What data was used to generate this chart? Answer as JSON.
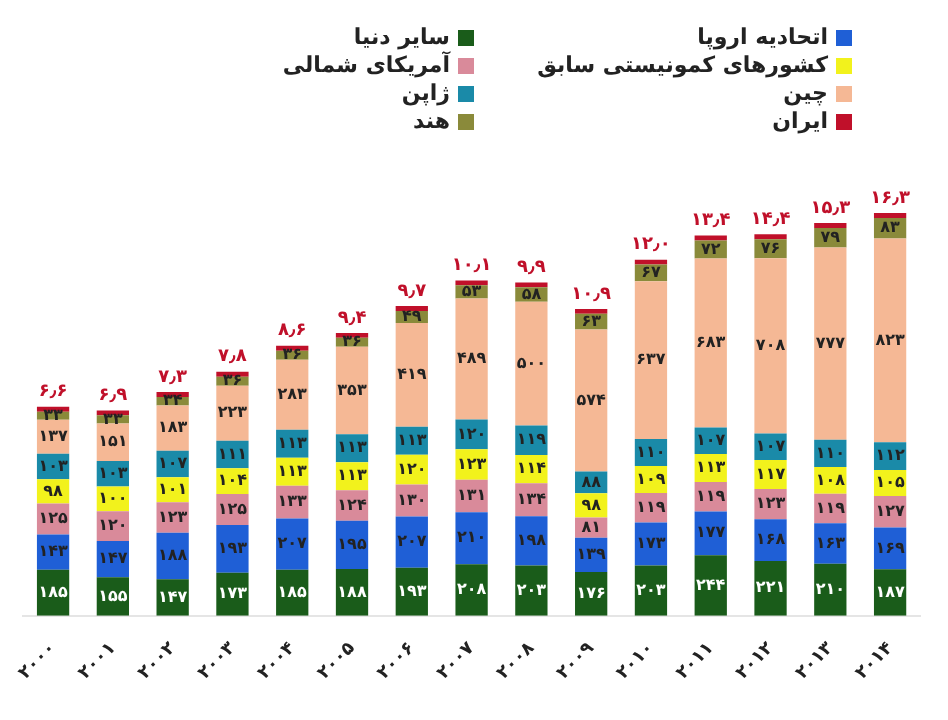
{
  "chart_data": {
    "type": "bar",
    "stacked": true,
    "legend": "top",
    "categories": [
      "۲۰۰۰",
      "۲۰۰۱",
      "۲۰۰۲",
      "۲۰۰۳",
      "۲۰۰۴",
      "۲۰۰۵",
      "۲۰۰۶",
      "۲۰۰۷",
      "۲۰۰۸",
      "۲۰۰۹",
      "۲۰۱۰",
      "۲۰۱۱",
      "۲۰۱۲",
      "۲۰۱۳",
      "۲۰۱۴"
    ],
    "series": [
      {
        "name": "سایر دنیا",
        "color": "#1a5c1a",
        "values": [
          185,
          155,
          147,
          173,
          185,
          188,
          193,
          208,
          203,
          176,
          203,
          244,
          221,
          210,
          187
        ],
        "value_labels": [
          "۱۸۵",
          "۱۵۵",
          "۱۴۷",
          "۱۷۳",
          "۱۸۵",
          "۱۸۸",
          "۱۹۳",
          "۲۰۸",
          "۲۰۳",
          "۱۷۶",
          "۲۰۳",
          "۲۴۴",
          "۲۲۱",
          "۲۱۰",
          "۱۸۷"
        ]
      },
      {
        "name": "اتحادیه اروپا",
        "color": "#1f5fd6",
        "values": [
          143,
          147,
          188,
          193,
          207,
          195,
          207,
          210,
          198,
          139,
          173,
          177,
          168,
          163,
          169
        ],
        "value_labels": [
          "۱۴۳",
          "۱۴۷",
          "۱۸۸",
          "۱۹۳",
          "۲۰۷",
          "۱۹۵",
          "۲۰۷",
          "۲۱۰",
          "۱۹۸",
          "۱۳۹",
          "۱۷۳",
          "۱۷۷",
          "۱۶۸",
          "۱۶۳",
          "۱۶۹"
        ]
      },
      {
        "name": "آمریکای شمالی",
        "color": "#d98a9a",
        "values": [
          125,
          120,
          123,
          125,
          133,
          124,
          130,
          131,
          134,
          81,
          119,
          119,
          123,
          119,
          127
        ],
        "value_labels": [
          "۱۲۵",
          "۱۲۰",
          "۱۲۳",
          "۱۲۵",
          "۱۳۳",
          "۱۲۴",
          "۱۳۰",
          "۱۳۱",
          "۱۳۴",
          "۸۱",
          "۱۱۹",
          "۱۱۹",
          "۱۲۳",
          "۱۱۹",
          "۱۲۷"
        ]
      },
      {
        "name": "کشورهای کمونیستی سابق",
        "color": "#f2f21c",
        "values": [
          98,
          100,
          101,
          104,
          113,
          113,
          120,
          123,
          114,
          98,
          109,
          113,
          117,
          108,
          105
        ],
        "value_labels": [
          "۹۸",
          "۱۰۰",
          "۱۰۱",
          "۱۰۴",
          "۱۱۳",
          "۱۱۳",
          "۱۲۰",
          "۱۲۳",
          "۱۱۴",
          "۹۸",
          "۱۰۹",
          "۱۱۳",
          "۱۱۷",
          "۱۰۸",
          "۱۰۵"
        ]
      },
      {
        "name": "ژاپن",
        "color": "#1a8aa8",
        "values": [
          103,
          103,
          107,
          111,
          113,
          113,
          113,
          120,
          119,
          88,
          110,
          107,
          107,
          110,
          112
        ],
        "value_labels": [
          "۱۰۳",
          "۱۰۳",
          "۱۰۷",
          "۱۱۱",
          "۱۱۳",
          "۱۱۳",
          "۱۱۳",
          "۱۲۰",
          "۱۱۹",
          "۸۸",
          "۱۱۰",
          "۱۰۷",
          "۱۰۷",
          "۱۱۰",
          "۱۱۲"
        ]
      },
      {
        "name": "چین",
        "color": "#f5b895",
        "values": [
          137,
          151,
          183,
          223,
          283,
          353,
          419,
          489,
          500,
          574,
          637,
          683,
          708,
          777,
          823
        ],
        "value_labels": [
          "۱۳۷",
          "۱۵۱",
          "۱۸۳",
          "۲۲۳",
          "۲۸۳",
          "۳۵۳",
          "۴۱۹",
          "۴۸۹",
          "۵۰۰",
          "۵۷۴",
          "۶۳۷",
          "۶۸۳",
          "۷۰۸",
          "۷۷۷",
          "۸۲۳"
        ]
      },
      {
        "name": "هند",
        "color": "#8a8a3a",
        "values": [
          33,
          33,
          34,
          36,
          36,
          36,
          49,
          53,
          58,
          63,
          67,
          72,
          76,
          79,
          83
        ],
        "value_labels": [
          "۳۳",
          "۳۳",
          "۳۴",
          "۳۶",
          "۳۶",
          "۳۶",
          "۴۹",
          "۵۳",
          "۵۸",
          "۶۳",
          "۶۷",
          "۷۲",
          "۷۶",
          "۷۹",
          "۸۳"
        ]
      },
      {
        "name": "ایران",
        "color": "#c0102a",
        "values": [
          20,
          20,
          20,
          20,
          20,
          20,
          20,
          20,
          20,
          20,
          20,
          20,
          20,
          20,
          20
        ]
      }
    ],
    "totals": [
      "۶٫۶",
      "۶٫۹",
      "۷٫۳",
      "۷٫۸",
      "۸٫۶",
      "۹٫۴",
      "۹٫۷",
      "۱۰٫۱",
      "۹٫۹",
      "۱۰٫۹",
      "۱۲٫۰",
      "۱۳٫۴",
      "۱۴٫۴",
      "۱۵٫۳",
      "۱۶٫۳"
    ]
  }
}
